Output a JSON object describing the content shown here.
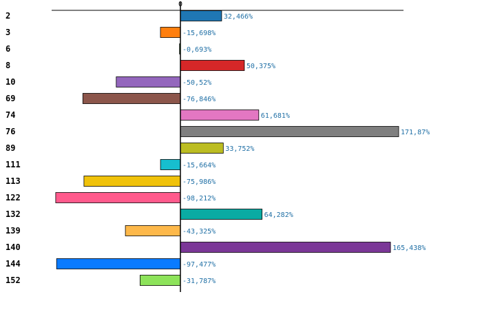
{
  "chart_data": {
    "type": "bar",
    "orientation": "horizontal",
    "title": "",
    "xlabel": "",
    "ylabel": "",
    "zero_tick_label": "0",
    "grid": false,
    "categories": [
      "2",
      "3",
      "6",
      "8",
      "10",
      "69",
      "74",
      "76",
      "89",
      "111",
      "113",
      "122",
      "132",
      "139",
      "140",
      "144",
      "152"
    ],
    "values": [
      32.466,
      -15.698,
      -0.693,
      50.375,
      -50.52,
      -76.846,
      61.681,
      171.87,
      33.752,
      -15.664,
      -75.986,
      -98.212,
      64.282,
      -43.325,
      165.438,
      -97.477,
      -31.787
    ],
    "value_labels": [
      "32,466%",
      "-15,698%",
      "-0,693%",
      "50,375%",
      "-50,52%",
      "-76,846%",
      "61,681%",
      "171,87%",
      "33,752%",
      "-15,664%",
      "-75,986%",
      "-98,212%",
      "64,282%",
      "-43,325%",
      "165,438%",
      "-97,477%",
      "-31,787%"
    ],
    "colors": [
      "#1f77b4",
      "#ff7f0e",
      "#2ca02c",
      "#d62728",
      "#9467bd",
      "#8c564b",
      "#e377c2",
      "#7f7f7f",
      "#bcbd22",
      "#17becf",
      "#f0c20a",
      "#ff5a8c",
      "#0aaba3",
      "#fdb84a",
      "#7b3797",
      "#0a7bff",
      "#8de35a"
    ],
    "value_label_color": "#1f6fa5"
  }
}
